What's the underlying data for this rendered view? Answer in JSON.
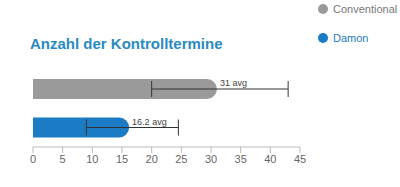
{
  "chart_data": {
    "type": "bar",
    "title": "Anzahl der Kontrolltermine",
    "orientation": "horizontal",
    "categories": [
      "Conventional",
      "Damon"
    ],
    "values": [
      31,
      16.2
    ],
    "value_labels": [
      "31 avg",
      "16.2 avg"
    ],
    "errors": [
      [
        11,
        12
      ],
      [
        7.2,
        8.3
      ]
    ],
    "colors": [
      "#9a9a9a",
      "#1b7bc4"
    ],
    "xlim": [
      0,
      45
    ],
    "xticks": [
      0,
      5,
      10,
      15,
      20,
      25,
      30,
      35,
      40,
      45
    ],
    "grid": false,
    "data_labels": true,
    "tick_labels": "x",
    "legend": "top right"
  }
}
